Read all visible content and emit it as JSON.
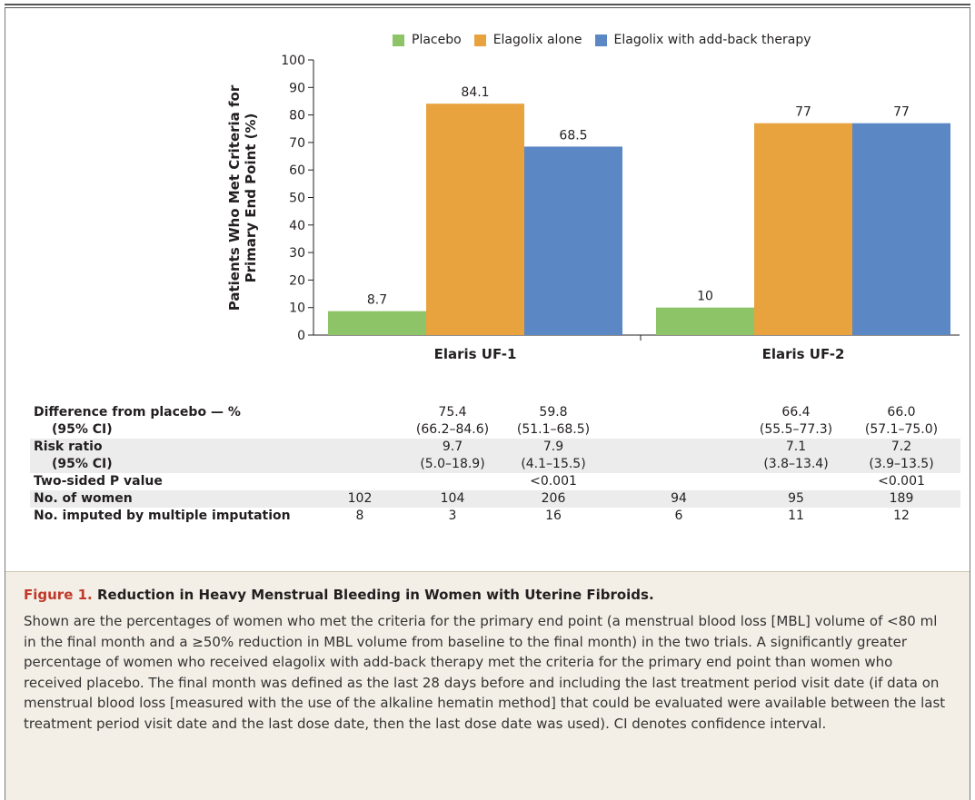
{
  "chart_data": {
    "type": "bar",
    "ylabel_line1": "Patients Who Met Criteria for",
    "ylabel_line2": "Primary End Point (%)",
    "ylim": [
      0,
      100
    ],
    "yticks": [
      0,
      10,
      20,
      30,
      40,
      50,
      60,
      70,
      80,
      90,
      100
    ],
    "categories": [
      "Elaris UF-1",
      "Elaris UF-2"
    ],
    "series": [
      {
        "name": "Placebo",
        "color": "#8dc467",
        "values": [
          8.7,
          10
        ]
      },
      {
        "name": "Elagolix alone",
        "color": "#e8a23e",
        "values": [
          84.1,
          77
        ]
      },
      {
        "name": "Elagolix with add-back therapy",
        "color": "#5b87c5",
        "values": [
          68.5,
          77
        ]
      }
    ],
    "data_labels": [
      [
        "8.7",
        "10"
      ],
      [
        "84.1",
        "77"
      ],
      [
        "68.5",
        "77"
      ]
    ],
    "legend_position": "top",
    "grid": false
  },
  "table": {
    "rows": [
      {
        "label": "Difference from placebo — %",
        "cells": [
          "",
          "75.4",
          "59.8",
          "",
          "66.4",
          "66.0"
        ],
        "shade": false
      },
      {
        "label": "(95% CI)",
        "sub": true,
        "cells": [
          "",
          "(66.2–84.6)",
          "(51.1–68.5)",
          "",
          "(55.5–77.3)",
          "(57.1–75.0)"
        ],
        "shade": false
      },
      {
        "label": "Risk ratio",
        "cells": [
          "",
          "9.7",
          "7.9",
          "",
          "7.1",
          "7.2"
        ],
        "shade": true
      },
      {
        "label": "(95% CI)",
        "sub": true,
        "cells": [
          "",
          "(5.0–18.9)",
          "(4.1–15.5)",
          "",
          "(3.8–13.4)",
          "(3.9–13.5)"
        ],
        "shade": true
      },
      {
        "label": "Two-sided P value",
        "cells": [
          "",
          "",
          "<0.001",
          "",
          "",
          "<0.001"
        ],
        "shade": false
      },
      {
        "label": "No. of women",
        "cells": [
          "102",
          "104",
          "206",
          "94",
          "95",
          "189"
        ],
        "shade": true
      },
      {
        "label": "No. imputed by multiple imputation",
        "cells": [
          "8",
          "3",
          "16",
          "6",
          "11",
          "12"
        ],
        "shade": false
      }
    ]
  },
  "caption": {
    "figure_label": "Figure 1.",
    "title": "Reduction in Heavy Menstrual Bleeding in Women with Uterine Fibroids.",
    "body": "Shown are the percentages of women who met the criteria for the primary end point (a menstrual blood loss [MBL] volume of <80 ml in the final month and a ≥50% reduction in MBL volume from baseline to the final month) in the two trials. A significantly greater percentage of women who received elagolix with add-back therapy met the criteria for the primary end point than women who received placebo. The final month was defined as the last 28 days before and including the last treatment period visit date (if data on menstrual blood loss [measured with the use of the alkaline hematin method] that could be evaluated were available between the last treatment period visit date and the last dose date, then the last dose date was used). CI denotes confidence interval."
  }
}
